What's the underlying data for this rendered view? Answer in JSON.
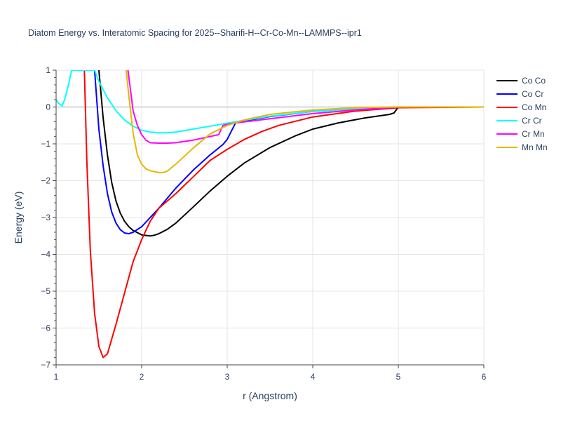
{
  "chart_data": {
    "type": "line",
    "title": "Diatom Energy vs. Interatomic Spacing for 2025--Sharifi-H--Cr-Co-Mn--LAMMPS--ipr1",
    "xlabel": "r (Angstrom)",
    "ylabel": "Energy (eV)",
    "xlim": [
      1,
      6
    ],
    "ylim": [
      -7,
      1
    ],
    "xticks": [
      "1",
      "2",
      "3",
      "4",
      "5",
      "6"
    ],
    "yticks": [
      "1",
      "0",
      "−1",
      "−2",
      "−3",
      "−4",
      "−5",
      "−6",
      "−7"
    ],
    "grid": true,
    "legend_position": "top-right",
    "series": [
      {
        "name": "Co Co",
        "color": "#000000",
        "x": [
          1.5,
          1.52,
          1.55,
          1.6,
          1.65,
          1.7,
          1.75,
          1.8,
          1.85,
          1.9,
          2.0,
          2.1,
          2.15,
          2.2,
          2.3,
          2.4,
          2.6,
          2.8,
          3.0,
          3.2,
          3.5,
          3.8,
          4.0,
          4.3,
          4.6,
          4.9,
          4.95,
          5.0,
          6.0
        ],
        "y": [
          1.0,
          0.5,
          -0.3,
          -1.3,
          -2.05,
          -2.55,
          -2.88,
          -3.1,
          -3.25,
          -3.35,
          -3.47,
          -3.5,
          -3.48,
          -3.44,
          -3.32,
          -3.15,
          -2.72,
          -2.28,
          -1.88,
          -1.52,
          -1.1,
          -0.78,
          -0.6,
          -0.43,
          -0.3,
          -0.2,
          -0.16,
          0.0,
          0.0
        ]
      },
      {
        "name": "Co Cr",
        "color": "#0000ff",
        "x": [
          1.45,
          1.5,
          1.55,
          1.6,
          1.65,
          1.7,
          1.75,
          1.8,
          1.85,
          1.9,
          2.0,
          2.2,
          2.4,
          2.6,
          2.8,
          2.95,
          3.0,
          3.05,
          3.1,
          3.2,
          3.5,
          4.0,
          4.5,
          5.0,
          6.0
        ],
        "y": [
          1.0,
          -0.6,
          -1.6,
          -2.35,
          -2.85,
          -3.15,
          -3.33,
          -3.42,
          -3.44,
          -3.4,
          -3.25,
          -2.75,
          -2.2,
          -1.72,
          -1.3,
          -1.02,
          -0.88,
          -0.65,
          -0.42,
          -0.38,
          -0.26,
          -0.12,
          -0.05,
          0.0,
          0.0
        ]
      },
      {
        "name": "Co Mn",
        "color": "#ff0000",
        "x": [
          1.33,
          1.36,
          1.4,
          1.45,
          1.5,
          1.55,
          1.6,
          1.65,
          1.7,
          1.8,
          1.9,
          2.0,
          2.1,
          2.2,
          2.4,
          2.6,
          2.8,
          3.0,
          3.2,
          3.4,
          3.6,
          4.0,
          4.5,
          5.0,
          6.0
        ],
        "y": [
          1.0,
          -1.5,
          -3.9,
          -5.6,
          -6.5,
          -6.8,
          -6.7,
          -6.3,
          -5.9,
          -5.05,
          -4.2,
          -3.6,
          -3.1,
          -2.75,
          -2.35,
          -1.9,
          -1.45,
          -1.15,
          -0.88,
          -0.67,
          -0.5,
          -0.27,
          -0.11,
          -0.02,
          0.0
        ]
      },
      {
        "name": "Cr Cr",
        "color": "#00ffff",
        "x": [
          1.0,
          1.03,
          1.07,
          1.1,
          1.15,
          1.18,
          1.45,
          1.5,
          1.6,
          1.7,
          1.8,
          1.9,
          2.0,
          2.1,
          2.2,
          2.3,
          2.4,
          2.6,
          2.8,
          3.0,
          3.2,
          3.5,
          4.0,
          4.5,
          5.0,
          6.0
        ],
        "y": [
          0.2,
          0.1,
          0.03,
          0.2,
          0.65,
          1.0,
          1.0,
          0.7,
          0.25,
          -0.1,
          -0.35,
          -0.52,
          -0.63,
          -0.68,
          -0.7,
          -0.7,
          -0.68,
          -0.6,
          -0.52,
          -0.44,
          -0.36,
          -0.25,
          -0.12,
          -0.05,
          0.0,
          0.0
        ]
      },
      {
        "name": "Cr Mn",
        "color": "#ff00ff",
        "x": [
          1.84,
          1.9,
          1.95,
          2.0,
          2.05,
          2.1,
          2.2,
          2.3,
          2.4,
          2.6,
          2.8,
          2.9,
          2.95,
          3.0,
          3.1,
          3.5,
          4.0,
          4.5,
          5.0,
          6.0
        ],
        "y": [
          1.0,
          -0.1,
          -0.5,
          -0.75,
          -0.9,
          -0.97,
          -0.98,
          -0.98,
          -0.97,
          -0.9,
          -0.8,
          -0.75,
          -0.5,
          -0.47,
          -0.43,
          -0.32,
          -0.18,
          -0.08,
          0.0,
          0.0
        ]
      },
      {
        "name": "Mn Mn",
        "color": "#e6b800",
        "x": [
          1.82,
          1.85,
          1.9,
          1.95,
          2.0,
          2.05,
          2.1,
          2.2,
          2.25,
          2.3,
          2.4,
          2.6,
          2.8,
          3.0,
          3.2,
          3.5,
          4.0,
          4.5,
          5.0,
          6.0
        ],
        "y": [
          1.0,
          0.3,
          -0.7,
          -1.3,
          -1.55,
          -1.68,
          -1.73,
          -1.78,
          -1.78,
          -1.74,
          -1.55,
          -1.12,
          -0.73,
          -0.5,
          -0.35,
          -0.2,
          -0.08,
          -0.02,
          0.0,
          0.0
        ]
      }
    ]
  }
}
